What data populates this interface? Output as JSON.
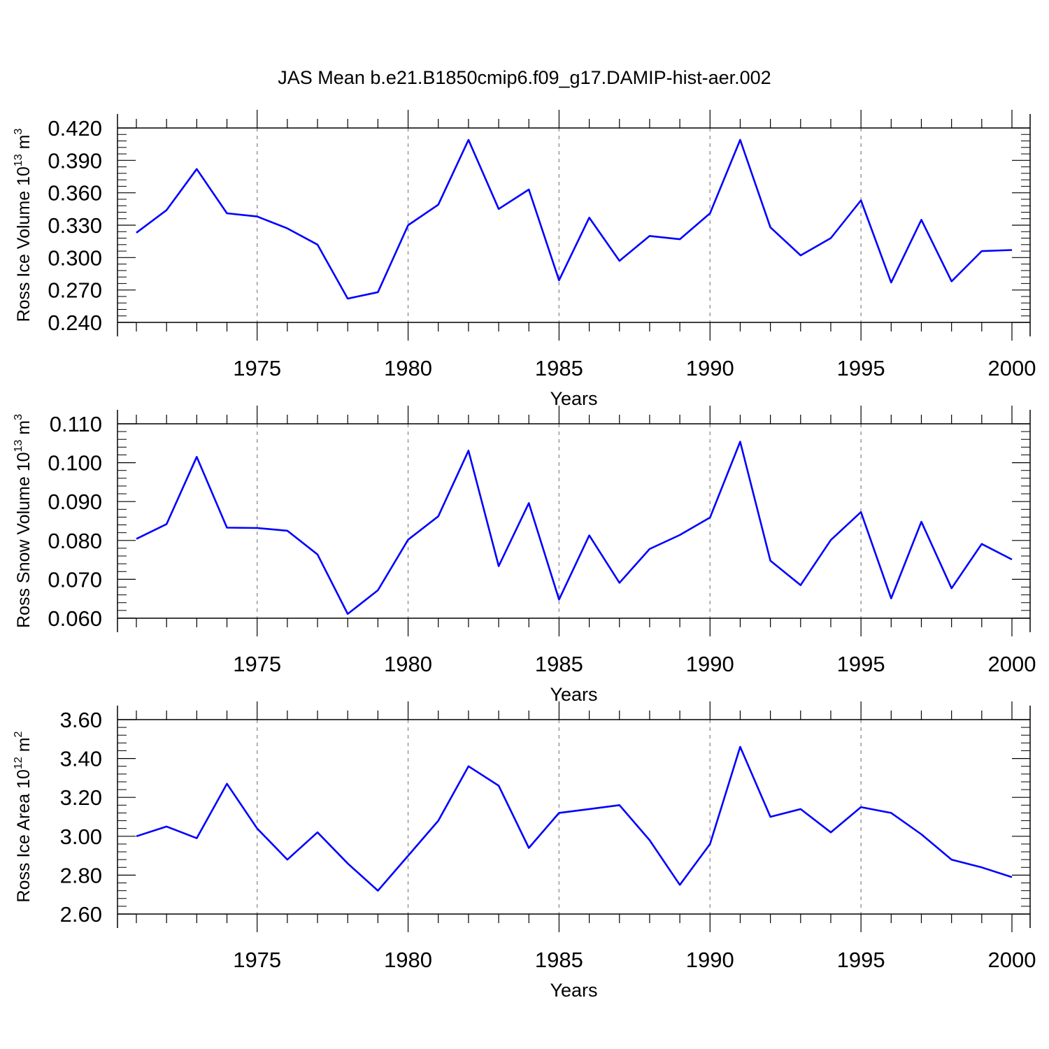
{
  "title": "JAS Mean b.e21.B1850cmip6.f09_g17.DAMIP-hist-aer.002",
  "chart_data": [
    {
      "type": "line",
      "ylabel": "Ross Ice Volume 10",
      "ylabel_exponent": "13",
      "ylabel_unit": " m",
      "ylabel_unit_exponent": "3",
      "xlabel": "Years",
      "xlim": [
        1971,
        2000
      ],
      "ylim": [
        0.24,
        0.42
      ],
      "yticks": [
        "0.240",
        "0.270",
        "0.300",
        "0.330",
        "0.360",
        "0.390",
        "0.420"
      ],
      "xticks": [
        "1975",
        "1980",
        "1985",
        "1990",
        "1995",
        "2000"
      ],
      "grid": "vertical dashed at major x ticks",
      "line_color": "#0000ff",
      "series": [
        {
          "x": [
            1971,
            1972,
            1973,
            1974,
            1975,
            1976,
            1977,
            1978,
            1979,
            1980,
            1981,
            1982,
            1983,
            1984,
            1985,
            1986,
            1987,
            1988,
            1989,
            1990,
            1991,
            1992,
            1993,
            1994,
            1995,
            1996,
            1997,
            1998,
            1999,
            2000
          ],
          "values": [
            0.323,
            0.344,
            0.382,
            0.341,
            0.338,
            0.327,
            0.312,
            0.262,
            0.268,
            0.33,
            0.349,
            0.409,
            0.345,
            0.363,
            0.279,
            0.337,
            0.297,
            0.32,
            0.317,
            0.341,
            0.409,
            0.328,
            0.302,
            0.318,
            0.353,
            0.277,
            0.335,
            0.278,
            0.306,
            0.307
          ]
        }
      ]
    },
    {
      "type": "line",
      "ylabel": "Ross Snow Volume 10",
      "ylabel_exponent": "13",
      "ylabel_unit": " m",
      "ylabel_unit_exponent": "3",
      "xlabel": "Years",
      "xlim": [
        1971,
        2000
      ],
      "ylim": [
        0.06,
        0.11
      ],
      "yticks": [
        "0.060",
        "0.070",
        "0.080",
        "0.090",
        "0.100",
        "0.110"
      ],
      "xticks": [
        "1975",
        "1980",
        "1985",
        "1990",
        "1995",
        "2000"
      ],
      "grid": "vertical dashed at major x ticks",
      "line_color": "#0000ff",
      "series": [
        {
          "x": [
            1971,
            1972,
            1973,
            1974,
            1975,
            1976,
            1977,
            1978,
            1979,
            1980,
            1981,
            1982,
            1983,
            1984,
            1985,
            1986,
            1987,
            1988,
            1989,
            1990,
            1991,
            1992,
            1993,
            1994,
            1995,
            1996,
            1997,
            1998,
            1999,
            2000
          ],
          "values": [
            0.0804,
            0.0842,
            0.1015,
            0.0833,
            0.0832,
            0.0825,
            0.0764,
            0.0611,
            0.0672,
            0.0802,
            0.0862,
            0.1031,
            0.0734,
            0.0896,
            0.0648,
            0.0813,
            0.0691,
            0.0778,
            0.0814,
            0.0859,
            0.1054,
            0.0748,
            0.0685,
            0.0801,
            0.0873,
            0.0651,
            0.0848,
            0.0677,
            0.0791,
            0.0751
          ]
        }
      ]
    },
    {
      "type": "line",
      "ylabel": "Ross Ice Area 10",
      "ylabel_exponent": "12",
      "ylabel_unit": " m",
      "ylabel_unit_exponent": "2",
      "xlabel": "Years",
      "xlim": [
        1971,
        2000
      ],
      "ylim": [
        2.6,
        3.6
      ],
      "yticks": [
        "2.60",
        "2.80",
        "3.00",
        "3.20",
        "3.40",
        "3.60"
      ],
      "xticks": [
        "1975",
        "1980",
        "1985",
        "1990",
        "1995",
        "2000"
      ],
      "grid": "vertical dashed at major x ticks",
      "line_color": "#0000ff",
      "series": [
        {
          "x": [
            1971,
            1972,
            1973,
            1974,
            1975,
            1976,
            1977,
            1978,
            1979,
            1980,
            1981,
            1982,
            1983,
            1984,
            1985,
            1986,
            1987,
            1988,
            1989,
            1990,
            1991,
            1992,
            1993,
            1994,
            1995,
            1996,
            1997,
            1998,
            1999,
            2000
          ],
          "values": [
            3.0,
            3.05,
            2.99,
            3.27,
            3.04,
            2.88,
            3.02,
            2.86,
            2.72,
            2.9,
            3.08,
            3.36,
            3.26,
            2.94,
            3.12,
            3.14,
            3.16,
            2.98,
            2.75,
            2.96,
            3.46,
            3.1,
            3.14,
            3.02,
            3.15,
            3.12,
            3.01,
            2.88,
            2.84,
            2.79
          ]
        }
      ]
    }
  ]
}
